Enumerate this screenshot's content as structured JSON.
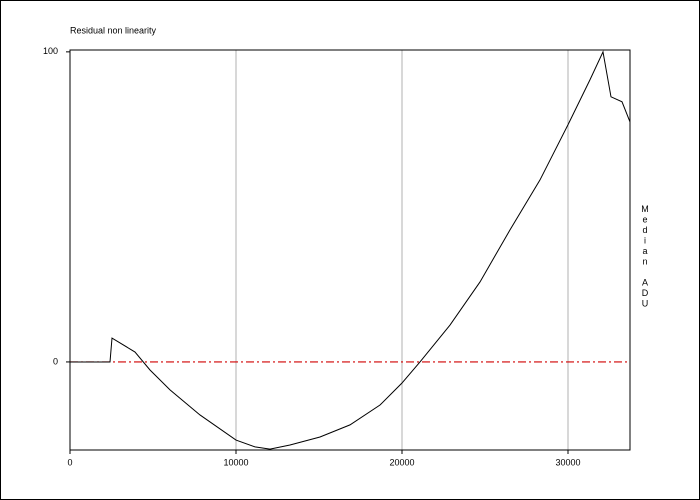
{
  "chart_data": {
    "type": "line",
    "title": "Residual non linearity",
    "y_label": "Median ADU",
    "x": [
      0,
      2410,
      2530,
      3916,
      4819,
      6024,
      7831,
      10000,
      11145,
      12048,
      13253,
      15060,
      16867,
      18675,
      20000,
      21084,
      22892,
      24699,
      26506,
      28313,
      30000,
      31325,
      32108,
      32590,
      33253,
      33735
    ],
    "series": [
      {
        "color": "#000000",
        "values": [
          0,
          0,
          7.7,
          3.2,
          -2.6,
          -9,
          -17.1,
          -25.2,
          -27.4,
          -28.1,
          -26.8,
          -24.2,
          -20.3,
          -13.9,
          -6.8,
          0,
          11.9,
          25.8,
          42.6,
          58.7,
          76.5,
          91,
          100,
          85.5,
          83.9,
          77.4
        ]
      }
    ],
    "xlim": [
      0,
      33735
    ],
    "xticks": [
      0,
      10000,
      20000,
      30000
    ],
    "ylim": [
      -28.4,
      100.6
    ],
    "yticks": [
      0,
      100
    ],
    "grid": true,
    "reference_line": {
      "value": 0,
      "color": "#d00000"
    }
  }
}
